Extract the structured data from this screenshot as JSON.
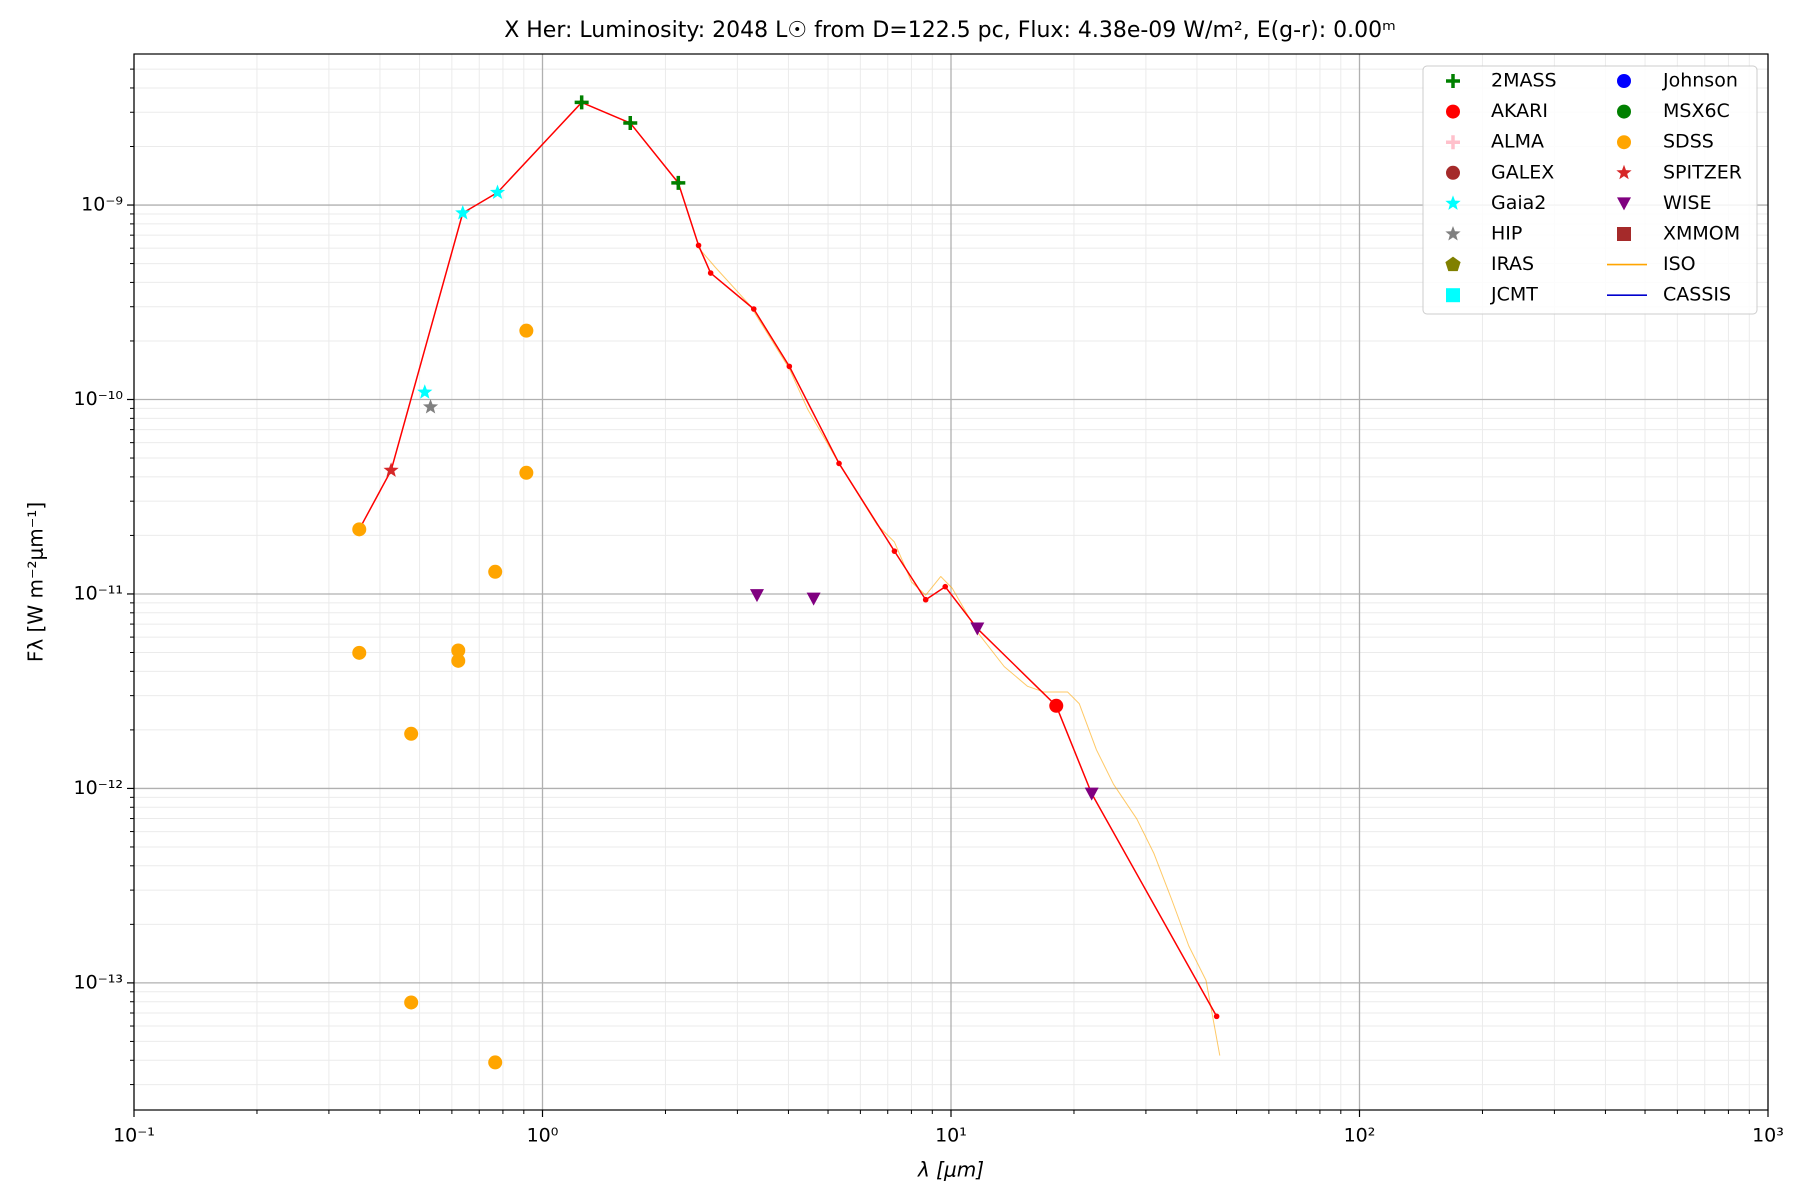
{
  "chart_data": {
    "type": "scatter",
    "title": "X Her:  Luminosity: 2048 L☉ from D=122.5 pc, Flux: 4.38e-09 W/m², E(g-r): 0.00ᵐ",
    "x_label": "λ [μm]",
    "y_label": "Fλ [W m⁻²μm⁻¹]",
    "xscale": "log",
    "yscale": "log",
    "grid": true,
    "legend": "upper right",
    "xlim": [
      0.1,
      1000
    ],
    "ylim": [
      2.22e-14,
      5.98e-09
    ],
    "xticks": [
      {
        "value": 0.1,
        "label": "10⁻¹"
      },
      {
        "value": 1,
        "label": "10⁰"
      },
      {
        "value": 10,
        "label": "10¹"
      },
      {
        "value": 100,
        "label": "10²"
      },
      {
        "value": 1000,
        "label": "10³"
      }
    ],
    "yticks": [
      {
        "value": 1e-13,
        "label": "10⁻¹³"
      },
      {
        "value": 1e-12,
        "label": "10⁻¹²"
      },
      {
        "value": 1e-11,
        "label": "10⁻¹¹"
      },
      {
        "value": 1e-10,
        "label": "10⁻¹⁰"
      },
      {
        "value": 1e-09,
        "label": "10⁻⁹"
      }
    ],
    "xminorticks": [
      0.2,
      0.3,
      0.4,
      0.5,
      0.6,
      0.7,
      0.8,
      0.9,
      2,
      3,
      4,
      5,
      6,
      7,
      8,
      9,
      20,
      30,
      40,
      50,
      60,
      70,
      80,
      90,
      200,
      300,
      400,
      500,
      600,
      700,
      800,
      900
    ],
    "yminorticks": [
      3e-14,
      4e-14,
      5e-14,
      6e-14,
      7e-14,
      8e-14,
      9e-14,
      2e-13,
      3e-13,
      4e-13,
      5e-13,
      6e-13,
      7e-13,
      8e-13,
      9e-13,
      2e-12,
      3e-12,
      4e-12,
      5e-12,
      6e-12,
      7e-12,
      8e-12,
      9e-12,
      2e-11,
      3e-11,
      4e-11,
      5e-11,
      6e-11,
      7e-11,
      8e-11,
      9e-11,
      2e-10,
      3e-10,
      4e-10,
      5e-10,
      6e-10,
      7e-10,
      8e-10,
      9e-10,
      2e-09,
      3e-09,
      4e-09,
      5e-09
    ],
    "model_line": {
      "color": "#ff0000",
      "x": [
        0.356,
        0.426,
        0.638,
        0.776,
        1.247,
        1.64,
        2.15,
        2.41,
        2.58,
        3.29,
        4.02,
        5.32,
        7.27,
        8.67,
        9.68,
        11.6,
        18.1,
        22.1,
        44.7
      ],
      "values": [
        2.15e-11,
        4.32e-11,
        9.1e-10,
        1.16e-09,
        3.37e-09,
        2.64e-09,
        1.3e-09,
        6.2e-10,
        4.47e-10,
        2.92e-10,
        1.48e-10,
        4.69e-11,
        1.66e-11,
        9.34e-12,
        1.09e-11,
        6.64e-12,
        2.66e-12,
        9.4e-13,
        6.73e-14
      ]
    },
    "series": [
      {
        "name": "2MASS",
        "marker": "plus",
        "color": "#008000",
        "x": [
          1.247,
          1.64,
          2.15
        ],
        "values": [
          3.37e-09,
          2.64e-09,
          1.3e-09
        ]
      },
      {
        "name": "AKARI",
        "marker": "circle",
        "color": "#ff0000",
        "x": [
          18.1
        ],
        "values": [
          2.66e-12
        ]
      },
      {
        "name": "ALMA",
        "marker": "plus",
        "color": "#ffc0cb",
        "x": [],
        "values": []
      },
      {
        "name": "GALEX",
        "marker": "circle",
        "color": "#a52a2a",
        "x": [],
        "values": []
      },
      {
        "name": "Gaia2",
        "marker": "star",
        "color": "#00ffff",
        "x": [
          0.515,
          0.638,
          0.776
        ],
        "values": [
          1.09e-10,
          9.1e-10,
          1.16e-09
        ]
      },
      {
        "name": "HIP",
        "marker": "star",
        "color": "#808080",
        "x": [
          0.532
        ],
        "values": [
          9.15e-11
        ]
      },
      {
        "name": "IRAS",
        "marker": "pentagon",
        "color": "#808000",
        "x": [],
        "values": []
      },
      {
        "name": "JCMT",
        "marker": "square",
        "color": "#00ffff",
        "x": [],
        "values": []
      },
      {
        "name": "Johnson",
        "marker": "circle",
        "color": "#0000ff",
        "x": [],
        "values": []
      },
      {
        "name": "MSX6C",
        "marker": "circle",
        "color": "#008000",
        "x": [],
        "values": []
      },
      {
        "name": "SDSS",
        "marker": "circle",
        "color": "#ffa500",
        "x": [
          0.356,
          0.356,
          0.477,
          0.477,
          0.622,
          0.622,
          0.766,
          0.766,
          0.913,
          0.913
        ],
        "values": [
          2.15e-11,
          4.98e-12,
          1.91e-12,
          7.93e-14,
          5.12e-12,
          4.53e-12,
          1.3e-11,
          3.9e-14,
          2.26e-10,
          4.2e-11
        ]
      },
      {
        "name": "SPITZER",
        "marker": "star",
        "color": "#d62728",
        "x": [
          0.426
        ],
        "values": [
          4.32e-11
        ]
      },
      {
        "name": "WISE",
        "marker": "triangle_down",
        "color": "#800080",
        "x": [
          3.35,
          4.61,
          11.6,
          22.1
        ],
        "values": [
          9.86e-12,
          9.47e-12,
          6.64e-12,
          9.4e-13
        ]
      },
      {
        "name": "XMMOM",
        "marker": "square",
        "color": "#a52a2a",
        "x": [],
        "values": []
      },
      {
        "name": "ISO",
        "marker": "line",
        "color": "#ffa500",
        "x": [
          2.41,
          2.65,
          3.22,
          4.02,
          4.46,
          5.32,
          6.59,
          7.27,
          8.01,
          8.67,
          9.44,
          10.07,
          11.6,
          13.5,
          15.4,
          16.9,
          19.3,
          20.6,
          22.7,
          25.0,
          28.5,
          31.4,
          34.7,
          38.2,
          42.1,
          45.5
        ],
        "values": [
          6.03e-10,
          4.78e-10,
          3.05e-10,
          1.44e-10,
          8.9e-11,
          4.69e-11,
          2.27e-11,
          1.85e-11,
          1.15e-11,
          9.86e-12,
          1.23e-11,
          1.07e-11,
          6.37e-12,
          4.23e-12,
          3.35e-12,
          3.13e-12,
          3.13e-12,
          2.73e-12,
          1.58e-12,
          1.05e-12,
          6.97e-13,
          4.62e-13,
          2.68e-13,
          1.55e-13,
          1.03e-13,
          4.23e-14
        ]
      },
      {
        "name": "CASSIS",
        "marker": "line",
        "color": "#0000cd",
        "x": [],
        "values": []
      }
    ]
  }
}
